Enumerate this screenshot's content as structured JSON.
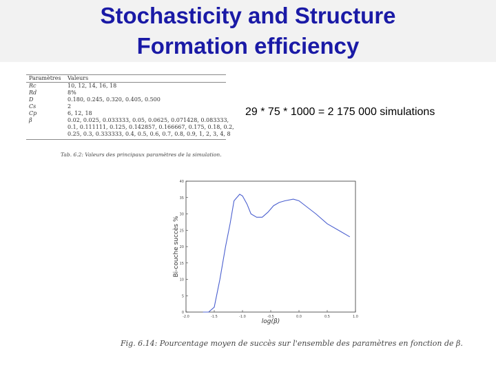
{
  "slide": {
    "title_line1": "Stochasticity and Structure",
    "title_line2": "Formation efficiency",
    "sim_note": "29 * 75 * 1000 = 2 175 000 simulations"
  },
  "table": {
    "headers": [
      "Paramètres",
      "Valeurs"
    ],
    "rows": [
      [
        "Rc",
        "10, 12, 14, 16, 18"
      ],
      [
        "Rd",
        "8%"
      ],
      [
        "D",
        "0.180, 0.245, 0.320, 0.405, 0.500"
      ],
      [
        "Cs",
        "2"
      ],
      [
        "Cp",
        "6, 12, 18"
      ],
      [
        "β",
        "0.02, 0.025, 0.033333, 0.05, 0.0625, 0.071428, 0.083333,"
      ],
      [
        "",
        "0.1, 0.111111, 0.125, 0.142857, 0.166667, 0.175, 0.18, 0.2,"
      ],
      [
        "",
        "0.25, 0.3, 0.333333, 0.4, 0.5, 0.6, 0.7, 0.8, 0.9, 1, 2, 3, 4, 8"
      ]
    ],
    "caption": "Tab. 6.2: Valeurs des principaux paramètres de la simulation."
  },
  "figure_caption": "Fig. 6.14: Pourcentage moyen de succès sur l'ensemble des paramètres en fonction de β.",
  "chart_data": {
    "type": "line",
    "ylabel": "Bi-couche succès %",
    "xlabel": "log(β)",
    "xlim": [
      -2.0,
      1.0
    ],
    "ylim": [
      0,
      40
    ],
    "x_ticks": [
      "-2.0",
      "-1.5",
      "-1.0",
      "-0.5",
      "0.0",
      "0.5",
      "1.0"
    ],
    "y_ticks": [
      "0",
      "5",
      "10",
      "15",
      "20",
      "25",
      "30",
      "35",
      "40"
    ],
    "line_color": "#4a5fcf",
    "series": [
      {
        "x": [
          -1.7,
          -1.6,
          -1.5,
          -1.4,
          -1.3,
          -1.22,
          -1.15,
          -1.05,
          -1.0,
          -0.92,
          -0.85,
          -0.75,
          -0.65,
          -0.55,
          -0.45,
          -0.35,
          -0.25,
          -0.1,
          0.0,
          0.15,
          0.3,
          0.5,
          0.75,
          0.9
        ],
        "y": [
          0.0,
          0.0,
          1.5,
          10.0,
          20.0,
          27.0,
          34.0,
          36.0,
          35.5,
          33.0,
          30.0,
          29.0,
          29.0,
          30.5,
          32.5,
          33.5,
          34.0,
          34.5,
          34.0,
          32.0,
          30.0,
          27.0,
          24.5,
          23.0
        ]
      }
    ]
  }
}
